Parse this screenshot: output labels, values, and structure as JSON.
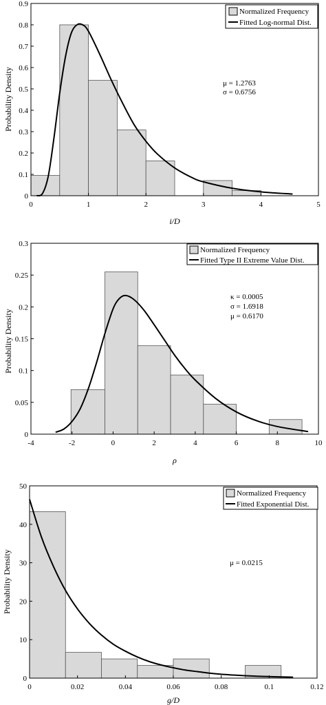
{
  "chart_data": [
    {
      "type": "bar",
      "subtype": "histogram-with-fitted-curve",
      "xlabel": "i/D",
      "ylabel": "Probability Density",
      "xlim": [
        0,
        5
      ],
      "ylim": [
        0,
        0.9
      ],
      "xticks": [
        0,
        1,
        2,
        3,
        4,
        5
      ],
      "yticks": [
        0,
        0.1,
        0.2,
        0.3,
        0.4,
        0.5,
        0.6,
        0.7,
        0.8,
        0.9
      ],
      "bar_color": "#d9d9d9",
      "bins": [
        {
          "x0": 0,
          "x1": 0.5,
          "value": 0.095
        },
        {
          "x0": 0.5,
          "x1": 1.0,
          "value": 0.8
        },
        {
          "x0": 1.0,
          "x1": 1.5,
          "value": 0.54
        },
        {
          "x0": 1.5,
          "x1": 2.0,
          "value": 0.308
        },
        {
          "x0": 2.0,
          "x1": 2.5,
          "value": 0.163
        },
        {
          "x0": 2.5,
          "x1": 3.0,
          "value": 0
        },
        {
          "x0": 3.0,
          "x1": 3.5,
          "value": 0.071
        },
        {
          "x0": 3.5,
          "x1": 4.0,
          "value": 0.024
        }
      ],
      "curve": {
        "name": "Fitted Log-normal Dist.",
        "x": [
          0.1,
          0.2,
          0.3,
          0.4,
          0.5,
          0.6,
          0.7,
          0.8,
          0.9,
          1.0,
          1.2,
          1.4,
          1.6,
          1.8,
          2.0,
          2.2,
          2.5,
          2.8,
          3.0,
          3.5,
          4.0,
          4.55
        ],
        "y": [
          0.0,
          0.01,
          0.09,
          0.27,
          0.48,
          0.65,
          0.76,
          0.8,
          0.8,
          0.77,
          0.66,
          0.54,
          0.43,
          0.33,
          0.255,
          0.195,
          0.13,
          0.085,
          0.065,
          0.035,
          0.018,
          0.008
        ]
      },
      "legend": {
        "position": "top-right",
        "entries": [
          "Normalized Frequency",
          "Fitted Log-normal Dist."
        ]
      },
      "annotations": [
        "μ = 1.2763",
        "σ = 0.6756"
      ]
    },
    {
      "type": "bar",
      "subtype": "histogram-with-fitted-curve",
      "xlabel": "ρ",
      "ylabel": "Probability Density",
      "xlim": [
        -4,
        10
      ],
      "ylim": [
        0,
        0.3
      ],
      "xticks": [
        -4,
        -2,
        0,
        2,
        4,
        6,
        8,
        10
      ],
      "yticks": [
        0,
        0.05,
        0.1,
        0.15,
        0.2,
        0.25,
        0.3
      ],
      "bar_color": "#d9d9d9",
      "bins": [
        {
          "x0": -2.05,
          "x1": -0.4,
          "value": 0.07
        },
        {
          "x0": -0.4,
          "x1": 1.2,
          "value": 0.255
        },
        {
          "x0": 1.2,
          "x1": 2.8,
          "value": 0.139
        },
        {
          "x0": 2.8,
          "x1": 4.4,
          "value": 0.093
        },
        {
          "x0": 4.4,
          "x1": 6.0,
          "value": 0.047
        },
        {
          "x0": 6.0,
          "x1": 7.6,
          "value": 0
        },
        {
          "x0": 7.6,
          "x1": 9.2,
          "value": 0.023
        }
      ],
      "curve": {
        "name": "Fitted Type II Extreme Value Dist.",
        "x": [
          -2.8,
          -2.4,
          -2.0,
          -1.6,
          -1.2,
          -0.8,
          -0.4,
          0.0,
          0.3,
          0.6,
          1.0,
          1.5,
          2.0,
          2.5,
          3.0,
          3.5,
          4.0,
          5.0,
          6.0,
          7.0,
          8.0,
          9.5
        ],
        "y": [
          0.003,
          0.008,
          0.02,
          0.04,
          0.072,
          0.113,
          0.158,
          0.197,
          0.213,
          0.218,
          0.212,
          0.195,
          0.172,
          0.148,
          0.124,
          0.103,
          0.085,
          0.056,
          0.035,
          0.021,
          0.012,
          0.004
        ]
      },
      "legend": {
        "position": "top-right",
        "entries": [
          "Normalized Frequency",
          "Fitted Type II Extreme Value Dist."
        ]
      },
      "annotations": [
        "κ = 0.0005",
        "σ = 1.6918",
        "μ = 0.6170"
      ]
    },
    {
      "type": "bar",
      "subtype": "histogram-with-fitted-curve",
      "xlabel": "g/D",
      "ylabel": "Probability Density",
      "xlim": [
        0,
        0.12
      ],
      "ylim": [
        0,
        50
      ],
      "xticks": [
        0,
        0.02,
        0.04,
        0.06,
        0.08,
        0.1,
        0.12
      ],
      "yticks": [
        0,
        10,
        20,
        30,
        40,
        50
      ],
      "bar_color": "#d9d9d9",
      "bins": [
        {
          "x0": 0,
          "x1": 0.015,
          "value": 43.3
        },
        {
          "x0": 0.015,
          "x1": 0.03,
          "value": 6.7
        },
        {
          "x0": 0.03,
          "x1": 0.045,
          "value": 5.0
        },
        {
          "x0": 0.045,
          "x1": 0.06,
          "value": 3.3
        },
        {
          "x0": 0.06,
          "x1": 0.075,
          "value": 5.0
        },
        {
          "x0": 0.075,
          "x1": 0.09,
          "value": 0
        },
        {
          "x0": 0.09,
          "x1": 0.105,
          "value": 3.3
        }
      ],
      "curve": {
        "name": "Fitted Exponential Dist.",
        "x": [
          0,
          0.005,
          0.01,
          0.015,
          0.02,
          0.025,
          0.03,
          0.035,
          0.04,
          0.045,
          0.05,
          0.055,
          0.06,
          0.065,
          0.07,
          0.075,
          0.08,
          0.085,
          0.09,
          0.095,
          0.1,
          0.105,
          0.11
        ],
        "y": [
          46.5,
          36.6,
          29.0,
          22.8,
          18.0,
          14.2,
          11.2,
          8.8,
          7.0,
          5.5,
          4.3,
          3.4,
          2.7,
          2.1,
          1.7,
          1.3,
          1.0,
          0.8,
          0.63,
          0.5,
          0.4,
          0.31,
          0.25
        ]
      },
      "legend": {
        "position": "top-right",
        "entries": [
          "Normalized Frequency",
          "Fitted Exponential Dist."
        ]
      },
      "annotations": [
        "μ = 0.0215"
      ]
    }
  ]
}
